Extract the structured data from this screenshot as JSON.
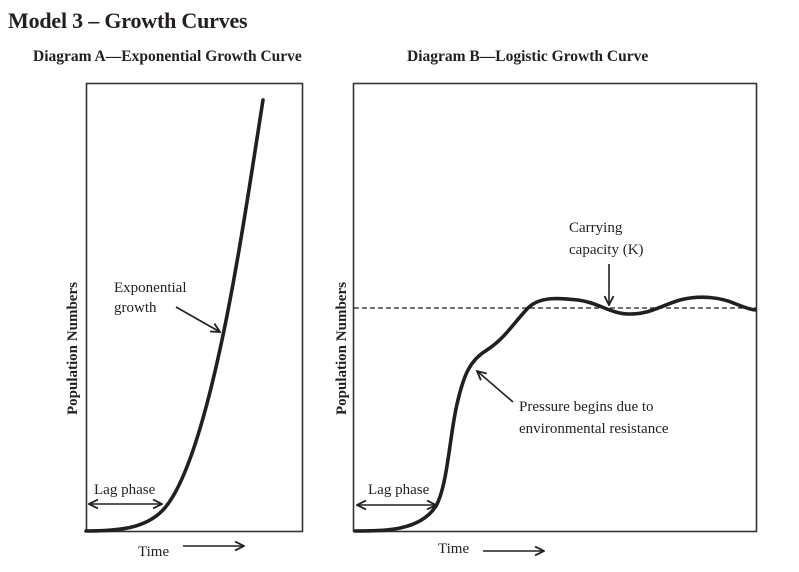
{
  "page": {
    "title": "Model 3 – Growth Curves"
  },
  "diagrams": [
    {
      "id": "A",
      "heading": "Diagram A—Exponential Growth Curve",
      "y_axis_label": "Population Numbers",
      "x_axis_label": "Time",
      "annotations": {
        "lag_phase": "Lag phase",
        "growth_line1": "Exponential",
        "growth_line2": "growth"
      }
    },
    {
      "id": "B",
      "heading": "Diagram B—Logistic Growth Curve",
      "y_axis_label": "Population Numbers",
      "x_axis_label": "Time",
      "annotations": {
        "lag_phase": "Lag phase",
        "carrying_line1": "Carrying",
        "carrying_line2": "capacity (K)",
        "pressure_line1": "Pressure begins due to",
        "pressure_line2": "environmental resistance"
      }
    }
  ],
  "colors": {
    "ink": "#231f20",
    "frame": "#333333",
    "background": "#ffffff"
  }
}
